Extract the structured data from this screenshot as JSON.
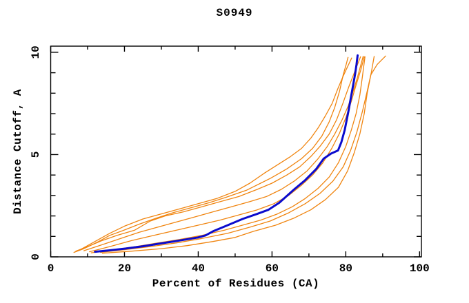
{
  "title": "S0949",
  "colors": {
    "model_line": "#f08510",
    "highlight_line": "#0b0bcd",
    "axis": "#000000",
    "background": "#ffffff"
  },
  "chart_data": {
    "type": "line",
    "title": "S0949",
    "xlabel": "Percent of Residues (CA)",
    "ylabel": "Distance Cutoff, A",
    "xlim": [
      0,
      100.5
    ],
    "ylim": [
      0,
      10.3
    ],
    "grid": false,
    "legend": "none",
    "frame": "full-box-with-mirrored-ticks",
    "x_major_ticks": [
      0,
      20,
      40,
      60,
      80,
      100
    ],
    "x_minor_step": 10,
    "y_major_ticks": [
      0,
      5,
      10
    ],
    "y_minor_step": 1,
    "series": [
      {
        "name": "orange-model-1",
        "color": "#f08510",
        "width": 1.3,
        "points": [
          [
            6.3,
            0.22
          ],
          [
            9,
            0.4
          ],
          [
            13,
            0.75
          ],
          [
            16,
            1.05
          ],
          [
            19.5,
            1.28
          ],
          [
            24,
            1.6
          ],
          [
            28.7,
            1.9
          ],
          [
            33,
            2.15
          ],
          [
            38,
            2.4
          ],
          [
            43,
            2.65
          ],
          [
            47.4,
            2.9
          ],
          [
            53,
            3.25
          ],
          [
            59.7,
            3.85
          ],
          [
            64,
            4.3
          ],
          [
            68,
            4.8
          ],
          [
            71,
            5.3
          ],
          [
            73.5,
            5.9
          ],
          [
            75.5,
            6.6
          ],
          [
            77,
            7.3
          ],
          [
            78.3,
            8.1
          ],
          [
            79.3,
            8.9
          ],
          [
            80.1,
            9.4
          ],
          [
            80.6,
            9.75
          ]
        ]
      },
      {
        "name": "orange-model-2",
        "color": "#f08510",
        "width": 1.3,
        "points": [
          [
            6.8,
            0.28
          ],
          [
            10,
            0.5
          ],
          [
            14,
            0.8
          ],
          [
            18,
            1.05
          ],
          [
            22.7,
            1.3
          ],
          [
            27,
            1.75
          ],
          [
            31,
            2.0
          ],
          [
            36,
            2.2
          ],
          [
            41,
            2.45
          ],
          [
            46,
            2.7
          ],
          [
            51,
            2.95
          ],
          [
            56,
            3.3
          ],
          [
            60,
            3.6
          ],
          [
            64,
            4.0
          ],
          [
            67.5,
            4.4
          ],
          [
            70.5,
            4.9
          ],
          [
            73,
            5.4
          ],
          [
            75.5,
            6.0
          ],
          [
            77.5,
            6.7
          ],
          [
            79.2,
            7.5
          ],
          [
            80.8,
            8.3
          ],
          [
            82.3,
            9.0
          ],
          [
            83.4,
            9.5
          ],
          [
            84,
            9.78
          ]
        ]
      },
      {
        "name": "orange-model-3",
        "color": "#f08510",
        "width": 1.3,
        "points": [
          [
            11,
            0.2
          ],
          [
            17,
            0.35
          ],
          [
            23,
            0.5
          ],
          [
            29,
            0.68
          ],
          [
            35,
            0.85
          ],
          [
            41,
            1.05
          ],
          [
            47,
            1.3
          ],
          [
            52,
            1.55
          ],
          [
            57,
            1.8
          ],
          [
            61.5,
            2.1
          ],
          [
            65.5,
            2.45
          ],
          [
            69,
            2.85
          ],
          [
            72.5,
            3.35
          ],
          [
            75.5,
            3.9
          ],
          [
            78,
            4.6
          ],
          [
            80,
            5.4
          ],
          [
            81.5,
            6.2
          ],
          [
            82.8,
            7.0
          ],
          [
            83.8,
            7.9
          ],
          [
            84.5,
            8.8
          ],
          [
            85,
            9.5
          ],
          [
            85.2,
            9.78
          ]
        ]
      },
      {
        "name": "orange-model-4",
        "color": "#f08510",
        "width": 1.3,
        "points": [
          [
            8,
            0.35
          ],
          [
            12,
            0.75
          ],
          [
            16,
            1.15
          ],
          [
            20,
            1.5
          ],
          [
            25,
            1.85
          ],
          [
            30,
            2.1
          ],
          [
            35,
            2.35
          ],
          [
            40,
            2.6
          ],
          [
            45,
            2.85
          ],
          [
            50,
            3.2
          ],
          [
            54,
            3.6
          ],
          [
            58,
            4.1
          ],
          [
            61.5,
            4.5
          ],
          [
            65,
            4.9
          ],
          [
            68,
            5.3
          ],
          [
            70.5,
            5.8
          ],
          [
            72.5,
            6.3
          ],
          [
            74.5,
            6.9
          ],
          [
            76.3,
            7.5
          ],
          [
            77.8,
            8.2
          ],
          [
            79.2,
            8.8
          ],
          [
            80.5,
            9.3
          ],
          [
            81.6,
            9.72
          ]
        ]
      },
      {
        "name": "orange-model-5",
        "color": "#f08510",
        "width": 1.3,
        "points": [
          [
            9,
            0.3
          ],
          [
            14,
            0.6
          ],
          [
            19,
            0.9
          ],
          [
            24,
            1.2
          ],
          [
            29,
            1.45
          ],
          [
            34,
            1.7
          ],
          [
            39,
            1.95
          ],
          [
            44,
            2.2
          ],
          [
            49,
            2.45
          ],
          [
            54,
            2.7
          ],
          [
            58.5,
            2.95
          ],
          [
            62.5,
            3.3
          ],
          [
            66,
            3.7
          ],
          [
            69.5,
            4.2
          ],
          [
            72.5,
            4.8
          ],
          [
            75,
            5.4
          ],
          [
            77,
            6.0
          ],
          [
            79,
            6.7
          ],
          [
            80.7,
            7.4
          ],
          [
            82,
            8.1
          ],
          [
            83.2,
            8.8
          ],
          [
            84.1,
            9.4
          ],
          [
            84.7,
            9.8
          ]
        ]
      },
      {
        "name": "orange-model-6",
        "color": "#f08510",
        "width": 1.3,
        "points": [
          [
            13.5,
            0.22
          ],
          [
            20,
            0.35
          ],
          [
            27,
            0.5
          ],
          [
            34,
            0.68
          ],
          [
            41,
            0.9
          ],
          [
            48,
            1.15
          ],
          [
            54,
            1.45
          ],
          [
            59.5,
            1.75
          ],
          [
            64.5,
            2.15
          ],
          [
            69,
            2.6
          ],
          [
            73,
            3.1
          ],
          [
            76.5,
            3.7
          ],
          [
            79.3,
            4.4
          ],
          [
            81.3,
            5.2
          ],
          [
            83,
            6.1
          ],
          [
            84.5,
            7.1
          ],
          [
            85.8,
            8.1
          ],
          [
            86.9,
            9.0
          ],
          [
            87.7,
            9.8
          ]
        ]
      },
      {
        "name": "orange-model-7",
        "color": "#f08510",
        "width": 1.3,
        "points": [
          [
            14,
            0.18
          ],
          [
            22,
            0.28
          ],
          [
            30,
            0.4
          ],
          [
            37,
            0.55
          ],
          [
            44,
            0.75
          ],
          [
            50,
            0.95
          ],
          [
            55,
            1.25
          ],
          [
            61,
            1.55
          ],
          [
            66,
            1.9
          ],
          [
            70.5,
            2.3
          ],
          [
            74.5,
            2.8
          ],
          [
            78,
            3.4
          ],
          [
            80.5,
            4.2
          ],
          [
            82.3,
            5.1
          ],
          [
            83.8,
            6.0
          ],
          [
            85,
            7.0
          ],
          [
            85.8,
            8.0
          ],
          [
            86.8,
            8.9
          ],
          [
            88.5,
            9.4
          ],
          [
            90.8,
            9.82
          ]
        ]
      },
      {
        "name": "orange-model-8",
        "color": "#f08510",
        "width": 1.3,
        "points": [
          [
            10.5,
            0.25
          ],
          [
            16,
            0.5
          ],
          [
            22,
            0.8
          ],
          [
            28,
            1.05
          ],
          [
            34,
            1.3
          ],
          [
            40,
            1.55
          ],
          [
            46,
            1.8
          ],
          [
            51,
            2.05
          ],
          [
            56,
            2.3
          ],
          [
            60.5,
            2.6
          ],
          [
            64.5,
            3.0
          ],
          [
            68,
            3.5
          ],
          [
            71,
            4.0
          ],
          [
            73.8,
            4.6
          ],
          [
            76.2,
            5.3
          ],
          [
            78.2,
            6.0
          ],
          [
            80,
            6.8
          ],
          [
            81.5,
            7.6
          ],
          [
            82.8,
            8.4
          ],
          [
            84,
            9.1
          ],
          [
            85,
            9.78
          ]
        ]
      },
      {
        "name": "blue-highlight-model",
        "color": "#0b0bcd",
        "width": 3,
        "points": [
          [
            12,
            0.25
          ],
          [
            16,
            0.32
          ],
          [
            20,
            0.4
          ],
          [
            25,
            0.52
          ],
          [
            30,
            0.66
          ],
          [
            35,
            0.8
          ],
          [
            40,
            0.95
          ],
          [
            42,
            1.05
          ],
          [
            44,
            1.25
          ],
          [
            48,
            1.55
          ],
          [
            52,
            1.85
          ],
          [
            56,
            2.1
          ],
          [
            59,
            2.3
          ],
          [
            62,
            2.65
          ],
          [
            66,
            3.3
          ],
          [
            69,
            3.75
          ],
          [
            72,
            4.3
          ],
          [
            74,
            4.8
          ],
          [
            76,
            5.05
          ],
          [
            77.9,
            5.2
          ],
          [
            78.8,
            5.6
          ],
          [
            79.7,
            6.2
          ],
          [
            80.7,
            7.1
          ],
          [
            81.6,
            8.0
          ],
          [
            82.5,
            8.9
          ],
          [
            82.9,
            9.4
          ],
          [
            83.2,
            9.85
          ]
        ]
      }
    ]
  }
}
